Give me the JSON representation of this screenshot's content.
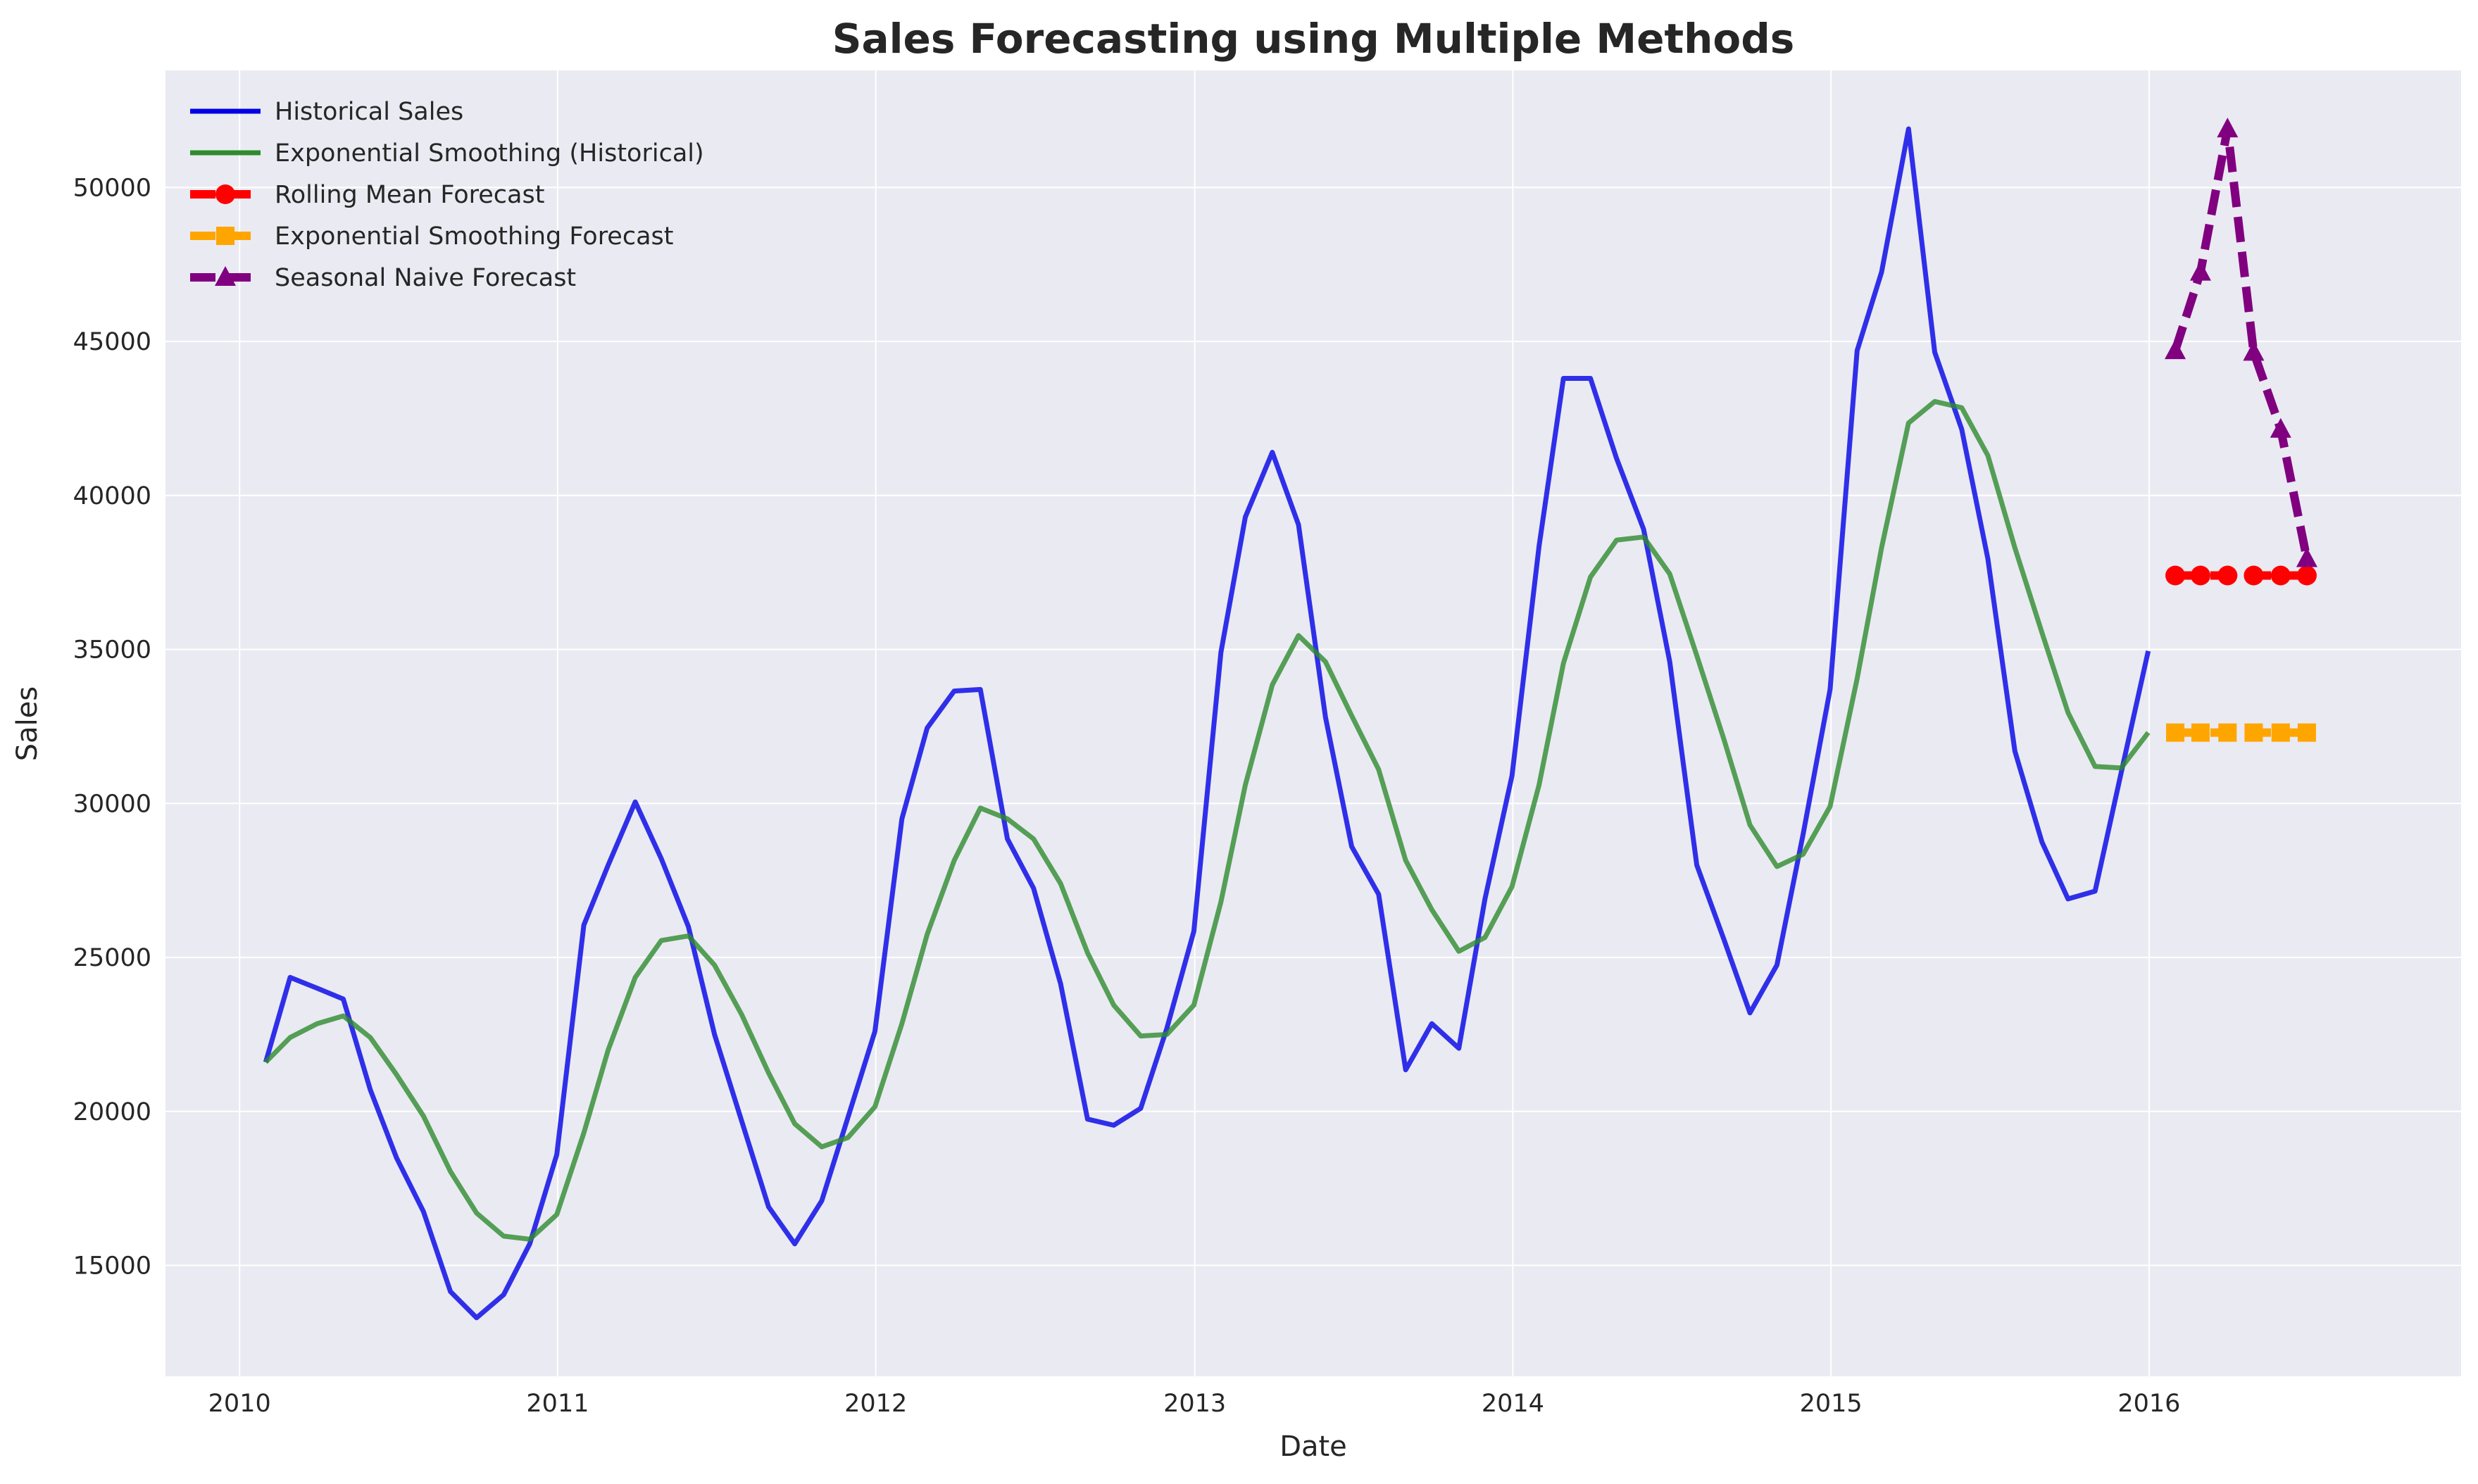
{
  "chart_data": {
    "type": "line",
    "title": "Sales Forecasting using Multiple Methods",
    "xlabel": "Date",
    "ylabel": "Sales",
    "x_axis_type": "date",
    "xlim": [
      "2009-10-08",
      "2016-12-24"
    ],
    "ylim": [
      11400,
      53800
    ],
    "x_ticks": [
      "2010-01-01",
      "2011-01-01",
      "2012-01-01",
      "2013-01-01",
      "2014-01-01",
      "2015-01-01",
      "2016-01-01"
    ],
    "x_tick_labels": [
      "2010",
      "2011",
      "2012",
      "2013",
      "2014",
      "2015",
      "2016"
    ],
    "y_ticks": [
      15000,
      20000,
      25000,
      30000,
      35000,
      40000,
      45000,
      50000
    ],
    "y_tick_labels": [
      "15000",
      "20000",
      "25000",
      "30000",
      "35000",
      "40000",
      "45000",
      "50000"
    ],
    "grid": true,
    "legend_position": "top-left",
    "background_color": "#eaeaf2",
    "series": [
      {
        "name": "Historical Sales",
        "color": "#0000e6",
        "style": "solid",
        "marker": "none",
        "x": [
          "2010-01-31",
          "2010-02-28",
          "2010-03-31",
          "2010-04-30",
          "2010-05-31",
          "2010-06-30",
          "2010-07-31",
          "2010-08-31",
          "2010-09-30",
          "2010-10-31",
          "2010-11-30",
          "2010-12-31",
          "2011-01-31",
          "2011-02-28",
          "2011-03-31",
          "2011-04-30",
          "2011-05-31",
          "2011-06-30",
          "2011-07-31",
          "2011-08-31",
          "2011-09-30",
          "2011-10-31",
          "2011-11-30",
          "2011-12-31",
          "2012-01-31",
          "2012-02-29",
          "2012-03-31",
          "2012-04-30",
          "2012-05-31",
          "2012-06-30",
          "2012-07-31",
          "2012-08-31",
          "2012-09-30",
          "2012-10-31",
          "2012-11-30",
          "2012-12-31",
          "2013-01-31",
          "2013-02-28",
          "2013-03-31",
          "2013-04-30",
          "2013-05-31",
          "2013-06-30",
          "2013-07-31",
          "2013-08-31",
          "2013-09-30",
          "2013-10-31",
          "2013-11-30",
          "2013-12-31",
          "2014-01-31",
          "2014-02-28",
          "2014-03-31",
          "2014-04-30",
          "2014-05-31",
          "2014-06-30",
          "2014-07-31",
          "2014-08-31",
          "2014-09-30",
          "2014-10-31",
          "2014-11-30",
          "2014-12-31",
          "2015-01-31",
          "2015-02-28",
          "2015-03-31",
          "2015-04-30",
          "2015-05-31",
          "2015-06-30",
          "2015-07-31",
          "2015-08-31",
          "2015-09-30",
          "2015-10-31",
          "2015-11-30",
          "2015-12-31"
        ],
        "values": [
          21600,
          24350,
          24000,
          23650,
          20700,
          18500,
          16750,
          14150,
          13300,
          14050,
          15700,
          18600,
          26050,
          28000,
          30050,
          28200,
          26000,
          22500,
          19700,
          16900,
          15700,
          17100,
          19800,
          22600,
          29500,
          32450,
          33650,
          33700,
          28850,
          27250,
          24150,
          19750,
          19550,
          20100,
          22700,
          25850,
          34900,
          39300,
          41400,
          39050,
          32800,
          28600,
          27050,
          21350,
          22850,
          22050,
          26900,
          30900,
          38350,
          43800,
          43800,
          41200,
          38900,
          34600,
          28000,
          25600,
          23200,
          24750,
          29000,
          33700,
          44700,
          47250,
          51900,
          44650,
          42150,
          37950,
          31700,
          28750,
          26900,
          27150,
          31000,
          34950
        ]
      },
      {
        "name": "Exponential Smoothing (Historical)",
        "color": "#2e8b2e",
        "style": "solid",
        "marker": "none",
        "x": [
          "2010-01-31",
          "2010-02-28",
          "2010-03-31",
          "2010-04-30",
          "2010-05-31",
          "2010-06-30",
          "2010-07-31",
          "2010-08-31",
          "2010-09-30",
          "2010-10-31",
          "2010-11-30",
          "2010-12-31",
          "2011-01-31",
          "2011-02-28",
          "2011-03-31",
          "2011-04-30",
          "2011-05-31",
          "2011-06-30",
          "2011-07-31",
          "2011-08-31",
          "2011-09-30",
          "2011-10-31",
          "2011-11-30",
          "2011-12-31",
          "2012-01-31",
          "2012-02-29",
          "2012-03-31",
          "2012-04-30",
          "2012-05-31",
          "2012-06-30",
          "2012-07-31",
          "2012-08-31",
          "2012-09-30",
          "2012-10-31",
          "2012-11-30",
          "2012-12-31",
          "2013-01-31",
          "2013-02-28",
          "2013-03-31",
          "2013-04-30",
          "2013-05-31",
          "2013-06-30",
          "2013-07-31",
          "2013-08-31",
          "2013-09-30",
          "2013-10-31",
          "2013-11-30",
          "2013-12-31",
          "2014-01-31",
          "2014-02-28",
          "2014-03-31",
          "2014-04-30",
          "2014-05-31",
          "2014-06-30",
          "2014-07-31",
          "2014-08-31",
          "2014-09-30",
          "2014-10-31",
          "2014-11-30",
          "2014-12-31",
          "2015-01-31",
          "2015-02-28",
          "2015-03-31",
          "2015-04-30",
          "2015-05-31",
          "2015-06-30",
          "2015-07-31",
          "2015-08-31",
          "2015-09-30",
          "2015-10-31",
          "2015-11-30",
          "2015-12-31"
        ],
        "values": [
          21600,
          22400,
          22850,
          23100,
          22400,
          21200,
          19850,
          18050,
          16700,
          15950,
          15850,
          16650,
          19300,
          22000,
          24350,
          25550,
          25700,
          24750,
          23150,
          21250,
          19600,
          18850,
          19150,
          20150,
          22850,
          25750,
          28150,
          29850,
          29500,
          28850,
          27400,
          25150,
          23450,
          22450,
          22500,
          23450,
          26800,
          30600,
          33850,
          35450,
          34600,
          32850,
          31100,
          28150,
          26550,
          25200,
          25650,
          27300,
          30600,
          34550,
          37350,
          38550,
          38650,
          37450,
          34800,
          32100,
          29300,
          27950,
          28350,
          29900,
          34050,
          38300,
          42350,
          43050,
          42850,
          41300,
          38300,
          35550,
          32950,
          31200,
          31150,
          32300
        ]
      },
      {
        "name": "Rolling Mean Forecast",
        "color": "#ff0000",
        "style": "dashed",
        "marker": "circle",
        "x": [
          "2016-01-31",
          "2016-02-29",
          "2016-03-31",
          "2016-04-30",
          "2016-05-31",
          "2016-06-30"
        ],
        "values": [
          37400,
          37400,
          37400,
          37400,
          37400,
          37400
        ]
      },
      {
        "name": "Exponential Smoothing Forecast",
        "color": "#ffa500",
        "style": "dashed",
        "marker": "square",
        "x": [
          "2016-01-31",
          "2016-02-29",
          "2016-03-31",
          "2016-04-30",
          "2016-05-31",
          "2016-06-30"
        ],
        "values": [
          32300,
          32300,
          32300,
          32300,
          32300,
          32300
        ]
      },
      {
        "name": "Seasonal Naive Forecast",
        "color": "#800080",
        "style": "dashed",
        "marker": "triangle",
        "x": [
          "2016-01-31",
          "2016-02-29",
          "2016-03-31",
          "2016-04-30",
          "2016-05-31",
          "2016-06-30"
        ],
        "values": [
          44700,
          47250,
          51900,
          44650,
          42150,
          37950
        ]
      }
    ]
  }
}
